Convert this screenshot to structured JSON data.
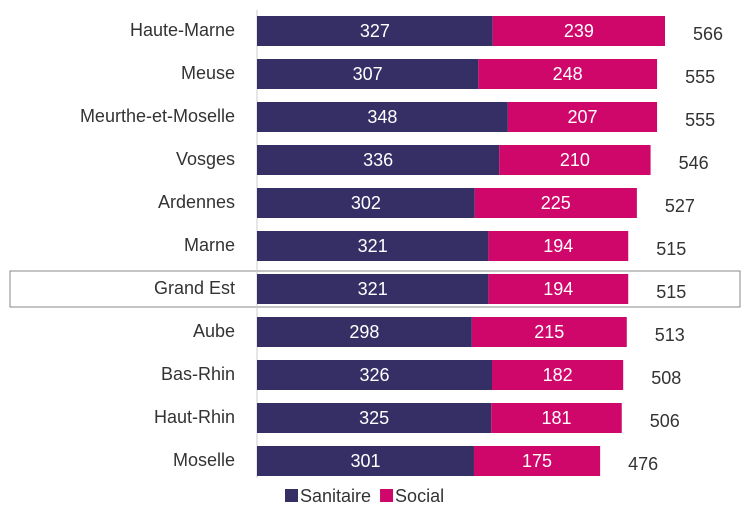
{
  "chart_data": {
    "type": "stacked-bar-horizontal",
    "categories": [
      "Haute-Marne",
      "Meuse",
      "Meurthe-et-Moselle",
      "Vosges",
      "Ardennes",
      "Marne",
      "Grand Est",
      "Aube",
      "Bas-Rhin",
      "Haut-Rhin",
      "Moselle"
    ],
    "series": [
      {
        "name": "Sanitaire",
        "color": "#352f66",
        "values": [
          327,
          307,
          348,
          336,
          302,
          321,
          321,
          298,
          326,
          325,
          301
        ]
      },
      {
        "name": "Social",
        "color": "#d0076a",
        "values": [
          239,
          248,
          207,
          210,
          225,
          194,
          194,
          215,
          182,
          181,
          175
        ]
      }
    ],
    "totals": [
      566,
      555,
      555,
      546,
      527,
      515,
      515,
      513,
      508,
      506,
      476
    ]
  }
}
